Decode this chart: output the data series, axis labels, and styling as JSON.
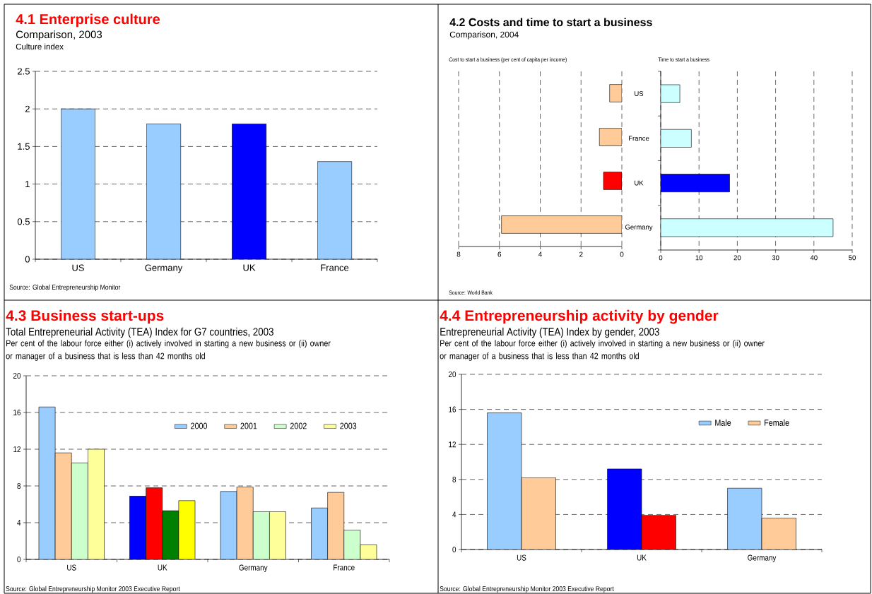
{
  "chart_data": [
    {
      "type": "bar",
      "title": "4.1 Enterprise culture",
      "subtitle": "Comparison, 2003",
      "ylabel": "Culture index",
      "categories": [
        "US",
        "Germany",
        "UK",
        "France"
      ],
      "values": [
        2.0,
        1.8,
        1.8,
        1.3
      ],
      "colors": [
        "#99ccff",
        "#99ccff",
        "#0000ff",
        "#99ccff"
      ],
      "ylim": [
        0,
        2.5
      ],
      "yticks": [
        0,
        0.5,
        1,
        1.5,
        2,
        2.5
      ],
      "grid": "y",
      "annotations": [
        "Source: Global Entrepreneurship Monitor"
      ]
    },
    {
      "type": "bar",
      "orientation": "horizontal",
      "title": "4.2 Costs and time to start a business",
      "subtitle": "Comparison, 2004",
      "xlabel": "Cost to start a business (per cent of capita per income)",
      "categories": [
        null,
        null,
        null,
        null
      ],
      "values": [
        0.6,
        1.1,
        0.9,
        5.9
      ],
      "colors": [
        "#ffcc99",
        "#ffcc99",
        "#ff0000",
        "#ffcc99"
      ],
      "xlim": [
        8,
        0
      ],
      "xticks": [
        8,
        6,
        4,
        2,
        0
      ],
      "grid": "x",
      "tick_labels": "x",
      "annotations": [
        "Source: World Bank"
      ]
    },
    {
      "type": "bar",
      "orientation": "horizontal",
      "xlabel": "Time to start a business",
      "categories": [
        "US",
        "France",
        "UK",
        "Germany"
      ],
      "values": [
        5,
        8,
        18,
        45
      ],
      "colors": [
        "#ccffff",
        "#ccffff",
        "#0000ff",
        "#ccffff"
      ],
      "xlim": [
        0,
        50
      ],
      "xticks": [
        0,
        10,
        20,
        30,
        40,
        50
      ],
      "grid": "x"
    },
    {
      "type": "bar",
      "title": "4.3 Business start-ups",
      "subtitle": "Total Entrepreneurial Activity (TEA) Index for G7 countries, 2003",
      "ylabel": "Per cent of the labour force either (i) actively involved in starting a new business or (ii) owner or manager of a business that is less than 42 months old",
      "categories": [
        "US",
        "UK",
        "Germany",
        "France"
      ],
      "series": [
        {
          "name": "2000",
          "color": "#99ccff",
          "colors": [
            "#99ccff",
            "#0000ff",
            "#99ccff",
            "#99ccff"
          ],
          "values": [
            16.6,
            6.9,
            7.4,
            5.6
          ]
        },
        {
          "name": "2001",
          "color": "#ffcc99",
          "colors": [
            "#ffcc99",
            "#ff0000",
            "#ffcc99",
            "#ffcc99"
          ],
          "values": [
            11.6,
            7.8,
            7.9,
            7.3
          ]
        },
        {
          "name": "2002",
          "color": "#ccffcc",
          "colors": [
            "#ccffcc",
            "#008000",
            "#ccffcc",
            "#ccffcc"
          ],
          "values": [
            10.5,
            5.3,
            5.2,
            3.2
          ]
        },
        {
          "name": "2003",
          "color": "#ffff99",
          "colors": [
            "#ffff99",
            "#ffff00",
            "#ffff99",
            "#ffff99"
          ],
          "values": [
            12.0,
            6.4,
            5.2,
            1.6
          ]
        }
      ],
      "ylim": [
        0,
        20
      ],
      "yticks": [
        0,
        4,
        8,
        12,
        16,
        20
      ],
      "grid": "y",
      "legend": "top right",
      "annotations": [
        "Source: Global Entrepreneurship Monitor 2003 Executive Report"
      ]
    },
    {
      "type": "bar",
      "title": "4.4 Entrepreneurship activity by gender",
      "subtitle": "Entrepreneurial Activity (TEA) Index by gender, 2003",
      "ylabel": "Per cent of the labour force either (i) actively involved in starting a new business or (ii) owner or manager of a business that is less than 42 months old",
      "categories": [
        "US",
        "UK",
        "Germany"
      ],
      "series": [
        {
          "name": "Male",
          "color": "#99ccff",
          "colors": [
            "#99ccff",
            "#0000ff",
            "#99ccff"
          ],
          "values": [
            15.6,
            9.2,
            7.0
          ]
        },
        {
          "name": "Female",
          "color": "#ffcc99",
          "colors": [
            "#ffcc99",
            "#ff0000",
            "#ffcc99"
          ],
          "values": [
            8.2,
            3.9,
            3.6
          ]
        }
      ],
      "ylim": [
        0,
        20
      ],
      "yticks": [
        0,
        4,
        8,
        12,
        16,
        20
      ],
      "grid": "y",
      "legend": "top right",
      "annotations": [
        "Source: Global Entrepreneurship Monitor 2003 Executive Report"
      ]
    }
  ]
}
